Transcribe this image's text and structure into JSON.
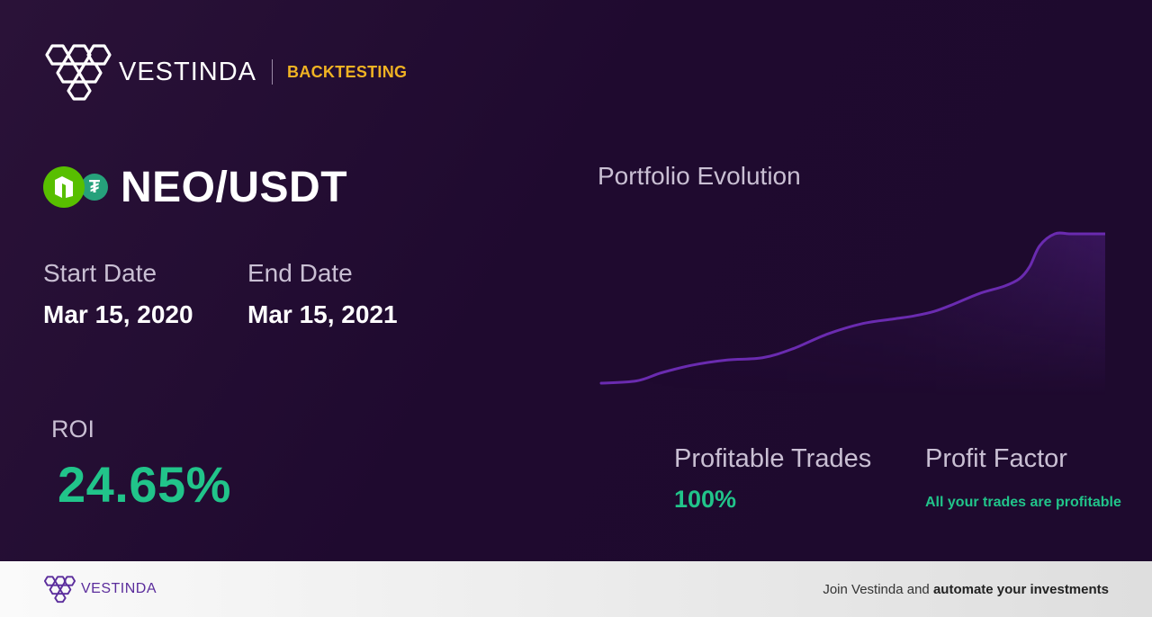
{
  "brand": {
    "name": "VESTINDA",
    "tag": "BACKTESTING",
    "icon": "vestinda-hexagon-logo"
  },
  "pair": {
    "name": "NEO/USDT",
    "base_icon": "neo-coin-icon",
    "quote_icon": "tether-coin-icon",
    "quote_glyph": "₮"
  },
  "dates": {
    "start_label": "Start Date",
    "start_value": "Mar 15, 2020",
    "end_label": "End Date",
    "end_value": "Mar 15, 2021"
  },
  "roi": {
    "label": "ROI",
    "value": "24.65%"
  },
  "chart": {
    "title": "Portfolio Evolution",
    "line_color": "#6a2bb0"
  },
  "chart_data": {
    "type": "area",
    "title": "Portfolio Evolution",
    "xlabel": "",
    "ylabel": "",
    "grid": false,
    "legend": "none",
    "x": [
      0,
      0.07,
      0.12,
      0.18,
      0.25,
      0.32,
      0.38,
      0.45,
      0.52,
      0.58,
      0.62,
      0.66,
      0.7,
      0.75,
      0.8,
      0.83,
      0.85,
      0.87,
      0.9,
      0.93,
      0.96,
      1.0
    ],
    "y": [
      0,
      0.015,
      0.07,
      0.12,
      0.155,
      0.17,
      0.23,
      0.33,
      0.4,
      0.43,
      0.45,
      0.48,
      0.53,
      0.6,
      0.65,
      0.7,
      0.78,
      0.92,
      1.0,
      1.0,
      1.0,
      1.0
    ]
  },
  "stats": {
    "profitable_label": "Profitable Trades",
    "profitable_value": "100%",
    "factor_label": "Profit Factor",
    "factor_value": "All your trades are profitable"
  },
  "colors": {
    "accent_green": "#21c48a",
    "brand_yellow": "#f0b323",
    "brand_purple": "#5b2d9c"
  },
  "footer": {
    "brand_name": "VESTINDA",
    "cta_prefix": "Join Vestinda and ",
    "cta_bold": "automate your investments"
  }
}
